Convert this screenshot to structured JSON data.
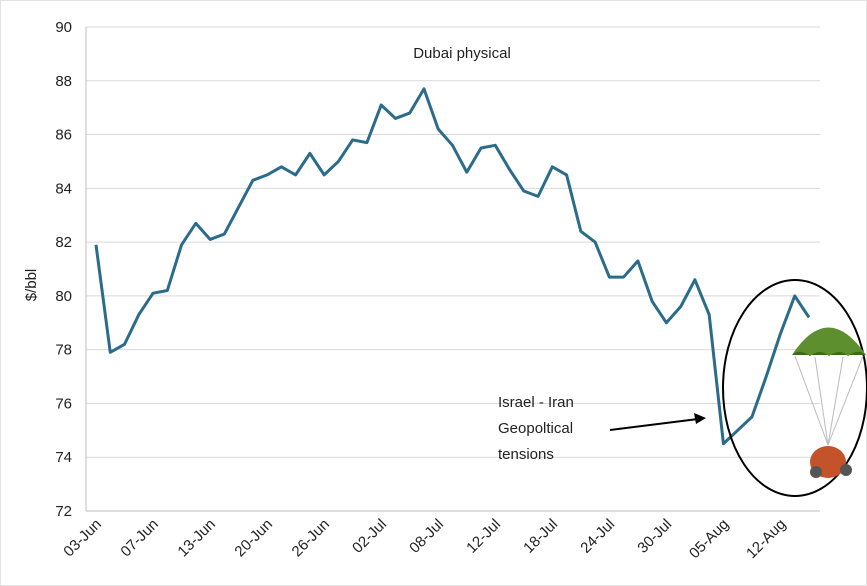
{
  "chart_data": {
    "type": "line",
    "title": "Dubai physical",
    "y_label": "$/bbl",
    "annotation": [
      "Israel - Iran",
      "Geopoltical",
      "tensions"
    ],
    "categories": [
      "03-Jun",
      null,
      null,
      null,
      "07-Jun",
      null,
      null,
      null,
      "13-Jun",
      null,
      null,
      null,
      "20-Jun",
      null,
      null,
      null,
      "26-Jun",
      null,
      null,
      null,
      "02-Jul",
      null,
      null,
      null,
      "08-Jul",
      null,
      null,
      null,
      "12-Jul",
      null,
      null,
      null,
      "18-Jul",
      null,
      null,
      null,
      "24-Jul",
      null,
      null,
      null,
      "30-Jul",
      null,
      null,
      null,
      "05-Aug",
      null,
      null,
      null,
      "12-Aug",
      null,
      null
    ],
    "series": [
      {
        "name": "Dubai physical",
        "color": "#2b6b8c",
        "values": [
          81.9,
          77.9,
          78.2,
          79.3,
          80.1,
          80.2,
          81.9,
          82.7,
          82.1,
          82.3,
          83.3,
          84.3,
          84.5,
          84.8,
          84.5,
          85.3,
          84.5,
          85.0,
          85.8,
          85.7,
          87.1,
          86.6,
          86.8,
          87.7,
          86.2,
          85.6,
          84.6,
          85.5,
          85.6,
          84.7,
          83.9,
          83.7,
          84.8,
          84.5,
          82.4,
          82.0,
          80.7,
          80.7,
          81.3,
          79.8,
          79.0,
          79.6,
          80.6,
          79.3,
          74.5,
          75.0,
          75.5,
          77.0,
          78.6,
          80.0,
          79.2
        ]
      }
    ],
    "ylim": [
      72,
      90
    ],
    "yticks": [
      72,
      74,
      76,
      78,
      80,
      82,
      84,
      86,
      88,
      90
    ],
    "grid": true
  }
}
